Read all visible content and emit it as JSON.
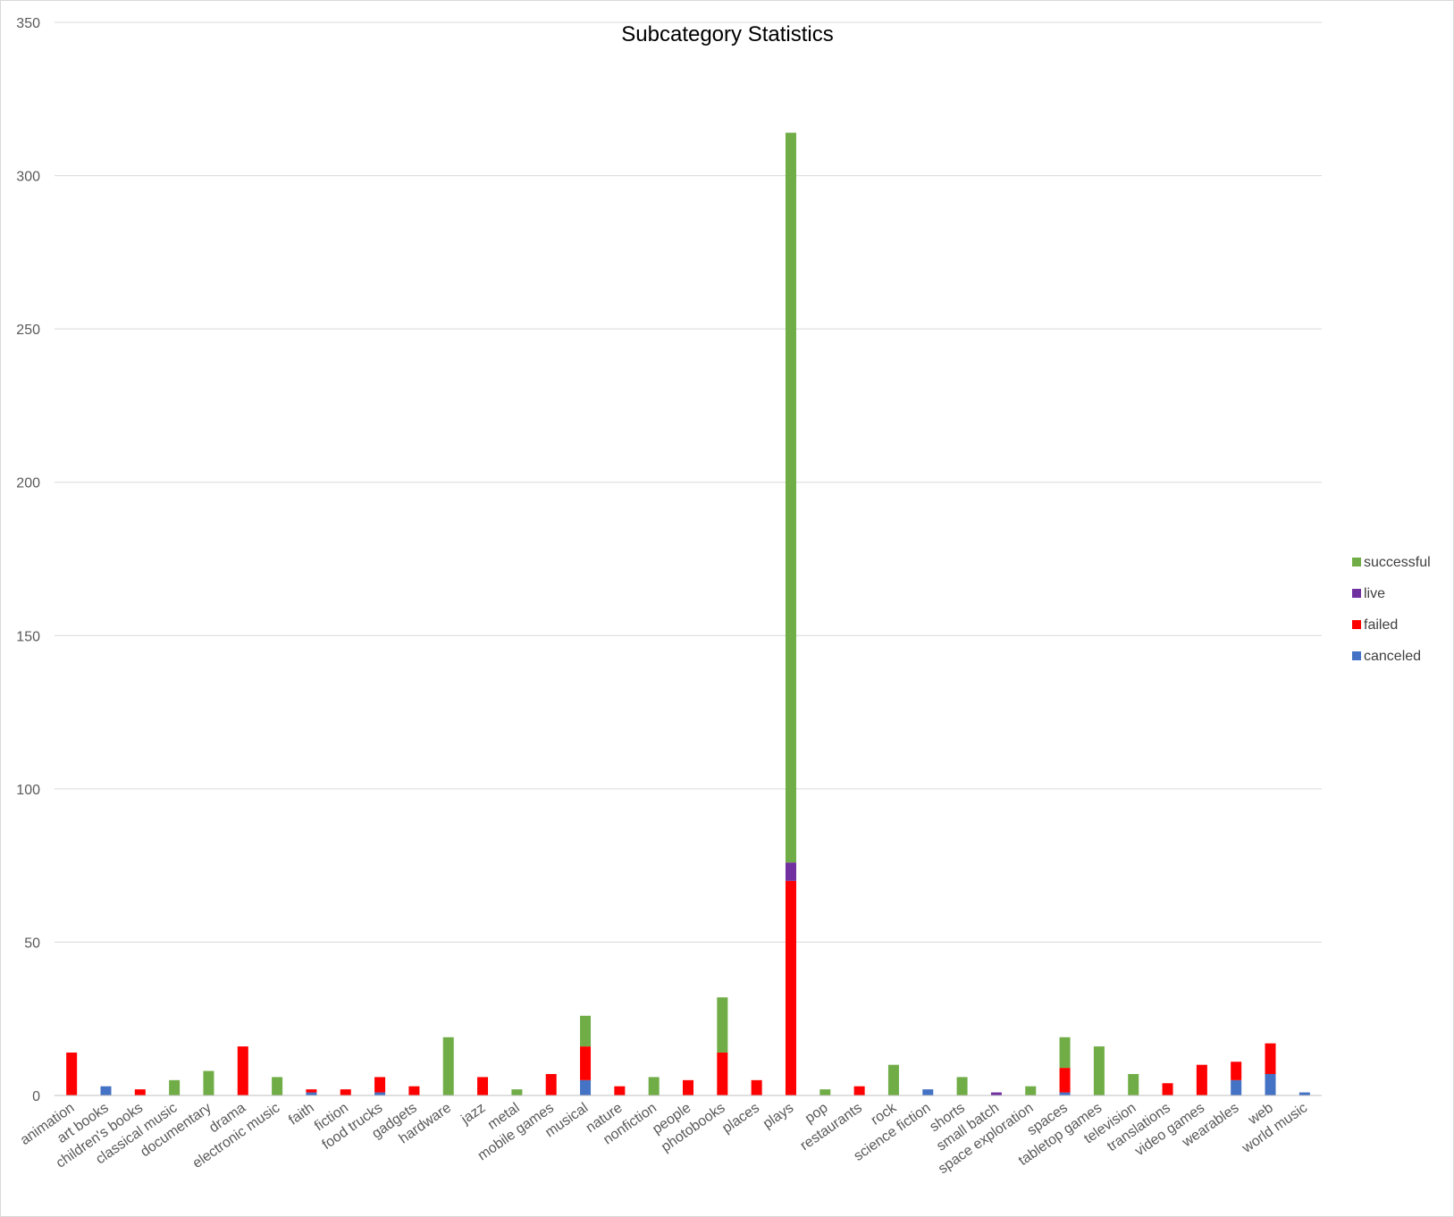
{
  "chart_data": {
    "type": "bar",
    "stacked": true,
    "title": "Subcategory Statistics",
    "xlabel": "",
    "ylabel": "",
    "ylim": [
      0,
      350
    ],
    "yticks": [
      0,
      50,
      100,
      150,
      200,
      250,
      300,
      350
    ],
    "grid": true,
    "legend_position": "right",
    "categories": [
      "animation",
      "art books",
      "children's books",
      "classical music",
      "documentary",
      "drama",
      "electronic music",
      "faith",
      "fiction",
      "food trucks",
      "gadgets",
      "hardware",
      "jazz",
      "metal",
      "mobile games",
      "musical",
      "nature",
      "nonfiction",
      "people",
      "photobooks",
      "places",
      "plays",
      "pop",
      "restaurants",
      "rock",
      "science fiction",
      "shorts",
      "small batch",
      "space exploration",
      "spaces",
      "tabletop games",
      "television",
      "translations",
      "video games",
      "wearables",
      "web",
      "world music"
    ],
    "series": [
      {
        "name": "canceled",
        "color": "#4472c4",
        "values": [
          0,
          3,
          0,
          0,
          0,
          0,
          0,
          1,
          0,
          1,
          0,
          0,
          0,
          0,
          0,
          5,
          0,
          0,
          0,
          0,
          0,
          0,
          0,
          0,
          0,
          2,
          0,
          0,
          0,
          1,
          0,
          0,
          0,
          0,
          5,
          7,
          1
        ]
      },
      {
        "name": "failed",
        "color": "#ff0000",
        "values": [
          14,
          0,
          2,
          0,
          0,
          16,
          0,
          1,
          2,
          5,
          3,
          0,
          6,
          0,
          7,
          11,
          3,
          0,
          5,
          14,
          5,
          70,
          0,
          3,
          0,
          0,
          0,
          0,
          0,
          8,
          0,
          0,
          4,
          10,
          6,
          10,
          0
        ]
      },
      {
        "name": "live",
        "color": "#7030a0",
        "values": [
          0,
          0,
          0,
          0,
          0,
          0,
          0,
          0,
          0,
          0,
          0,
          0,
          0,
          0,
          0,
          0,
          0,
          0,
          0,
          0,
          0,
          6,
          0,
          0,
          0,
          0,
          0,
          1,
          0,
          0,
          0,
          0,
          0,
          0,
          0,
          0,
          0
        ]
      },
      {
        "name": "successful",
        "color": "#70ad47",
        "values": [
          0,
          0,
          0,
          5,
          8,
          0,
          6,
          0,
          0,
          0,
          0,
          19,
          0,
          2,
          0,
          10,
          0,
          6,
          0,
          18,
          0,
          238,
          2,
          0,
          10,
          0,
          6,
          0,
          3,
          10,
          16,
          7,
          0,
          0,
          0,
          0,
          0
        ]
      }
    ]
  }
}
